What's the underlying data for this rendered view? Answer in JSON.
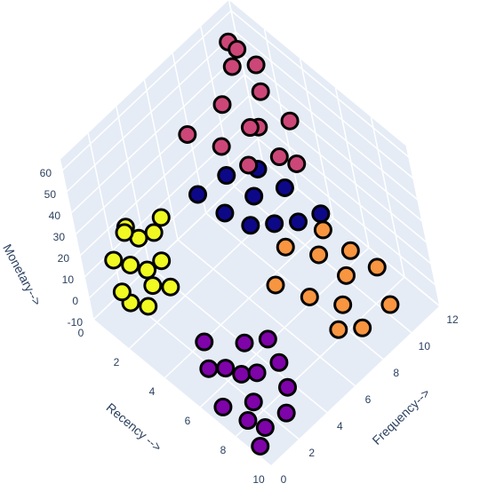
{
  "chart_data": {
    "type": "scatter3d",
    "x_label": "Recency -->",
    "y_label": "Frequency-->",
    "z_label": "Monetary-->",
    "xlim": [
      0,
      10
    ],
    "ylim": [
      0,
      12
    ],
    "zlim": [
      -10,
      65
    ],
    "xticks": [
      0,
      2,
      4,
      6,
      8,
      10
    ],
    "yticks": [
      0,
      2,
      4,
      6,
      8,
      10,
      12
    ],
    "zticks": [
      -10,
      0,
      10,
      20,
      30,
      40,
      50,
      60
    ],
    "grid": true,
    "series": [
      {
        "color": "#f0f921",
        "x": [
          0.5,
          1,
          1.5,
          0.8,
          1.2,
          2,
          0.3,
          1.8,
          2.2,
          1,
          0.6,
          1.4,
          2.5,
          0.9
        ],
        "y": [
          1.5,
          2,
          2.5,
          3,
          1,
          2.2,
          2.8,
          3.2,
          1.5,
          3.8,
          2.4,
          1.2,
          2.8,
          4.5
        ],
        "z": [
          12,
          10,
          8,
          15,
          5,
          6,
          18,
          10,
          2,
          14,
          20,
          0,
          5,
          16
        ]
      },
      {
        "color": "#7e03a8",
        "x": [
          6,
          7,
          8,
          6.5,
          7.5,
          8.5,
          9,
          7,
          6,
          8,
          9.5,
          5.5,
          7,
          8.8,
          9.2
        ],
        "y": [
          1,
          2,
          1.5,
          3,
          2.5,
          0.5,
          1,
          0.5,
          2,
          3.5,
          2,
          1.5,
          4,
          3,
          0.3
        ],
        "z": [
          2,
          0,
          -3,
          5,
          1,
          -2,
          -5,
          -6,
          -4,
          3,
          -1,
          8,
          4,
          0,
          -8
        ]
      },
      {
        "color": "#f89540",
        "x": [
          6,
          7,
          8,
          6.5,
          7.5,
          8.5,
          5.5,
          9,
          7,
          8,
          6,
          9.5
        ],
        "y": [
          6,
          7,
          8,
          8.5,
          9,
          7,
          7.5,
          8,
          10,
          10.5,
          9.5,
          9.5
        ],
        "z": [
          10,
          5,
          2,
          12,
          6,
          0,
          15,
          -2,
          8,
          4,
          14,
          3
        ]
      },
      {
        "color": "#0d0887",
        "x": [
          2,
          3,
          4,
          2.5,
          3.5,
          4.5,
          5,
          3,
          4,
          5.5
        ],
        "y": [
          6,
          6.5,
          7,
          7.5,
          8,
          8,
          9,
          9,
          9.5,
          10
        ],
        "z": [
          25,
          20,
          18,
          28,
          22,
          16,
          14,
          25,
          20,
          15
        ]
      },
      {
        "color": "#cc4778",
        "x": [
          1,
          2,
          3,
          1.5,
          2.5,
          3.5,
          1,
          2,
          0.5,
          1.5,
          2.5,
          4,
          3,
          1
        ],
        "y": [
          7,
          8,
          8.5,
          9,
          9.5,
          10,
          10.5,
          11,
          11,
          11.5,
          10,
          10.5,
          11.5,
          11
        ],
        "z": [
          40,
          35,
          30,
          45,
          38,
          28,
          50,
          42,
          55,
          48,
          35,
          25,
          32,
          55
        ]
      }
    ]
  }
}
